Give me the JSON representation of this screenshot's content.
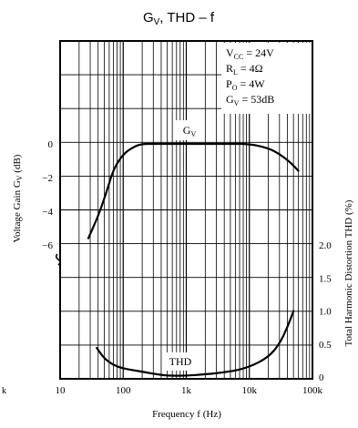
{
  "chart_data": {
    "type": "line",
    "title_main": "G",
    "title_sub": "V",
    "title_rest": ", THD – f",
    "x_scale": "log",
    "xlim": [
      10,
      100000
    ],
    "x_ticks": [
      {
        "value": 10,
        "label": "10"
      },
      {
        "value": 100,
        "label": "100"
      },
      {
        "value": 1000,
        "label": "1k"
      },
      {
        "value": 10000,
        "label": "10k"
      },
      {
        "value": 100000,
        "label": "100k"
      }
    ],
    "stray_left_label": "k",
    "xlabel": "Frequency f (Hz)",
    "ylabel_left": "Voltage Gain G",
    "ylabel_left_sub": "V",
    "ylabel_left_unit": " (dB)",
    "ylabel_right": "Total Harmonic Distortion THD (%)",
    "left_axis_ticks": [
      {
        "value": 0,
        "label": "0"
      },
      {
        "value": -2,
        "label": "−2"
      },
      {
        "value": -4,
        "label": "−4"
      },
      {
        "value": -6,
        "label": "−6"
      }
    ],
    "right_axis_ticks": [
      {
        "value": 0,
        "label": "0"
      },
      {
        "value": 0.5,
        "label": "0.5"
      },
      {
        "value": 1.0,
        "label": "1.0"
      },
      {
        "value": 1.5,
        "label": "1.5"
      },
      {
        "value": 2.0,
        "label": "2.0"
      }
    ],
    "conditions": [
      {
        "main": "V",
        "sub": "CC",
        "rest": " = 24V"
      },
      {
        "main": "R",
        "sub": "L",
        "rest": " = 4Ω"
      },
      {
        "main": "P",
        "sub": "O",
        "rest": " = 4W"
      },
      {
        "main": "G",
        "sub": "V",
        "rest": " = 53dB"
      }
    ],
    "grid": true,
    "series": [
      {
        "name": "Gv",
        "label_main": "G",
        "label_sub": "V",
        "axis": "left",
        "unit": "dB",
        "x": [
          28,
          40,
          55,
          70,
          100,
          150,
          200,
          300,
          500,
          1000,
          2000,
          5000,
          10000,
          20000,
          30000,
          45000,
          60000
        ],
        "y": [
          -5.6,
          -4.3,
          -2.8,
          -1.5,
          -0.6,
          -0.15,
          0,
          0,
          0,
          0,
          0,
          0,
          0,
          -0.25,
          -0.6,
          -1.1,
          -1.6
        ]
      },
      {
        "name": "THD",
        "label": "THD",
        "axis": "right",
        "unit": "%",
        "x": [
          38,
          50,
          70,
          100,
          150,
          200,
          300,
          500,
          1000,
          2000,
          5000,
          10000,
          20000,
          30000,
          40000,
          50000
        ],
        "y": [
          0.44,
          0.28,
          0.18,
          0.13,
          0.1,
          0.08,
          0.05,
          0.02,
          0.02,
          0.04,
          0.08,
          0.15,
          0.3,
          0.5,
          0.75,
          1.0
        ]
      }
    ]
  }
}
